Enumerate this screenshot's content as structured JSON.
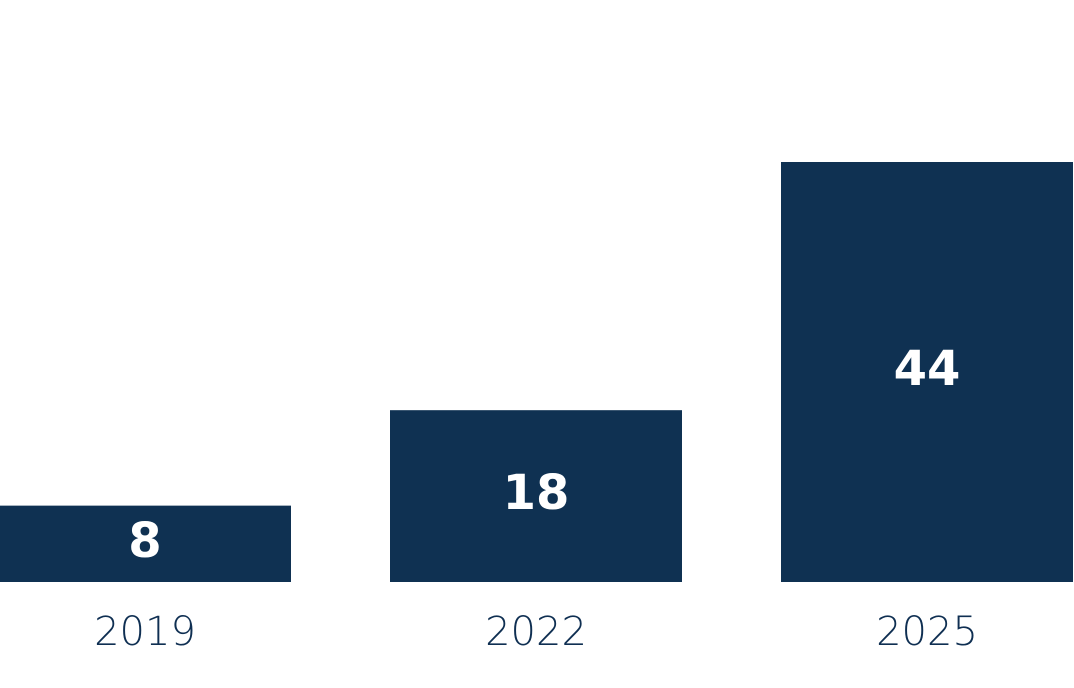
{
  "chart_data": {
    "type": "bar",
    "categories": [
      "2019",
      "2022",
      "2025"
    ],
    "values": [
      8,
      18,
      44
    ],
    "color": "#0f3152",
    "ylim": [
      0,
      44
    ]
  }
}
